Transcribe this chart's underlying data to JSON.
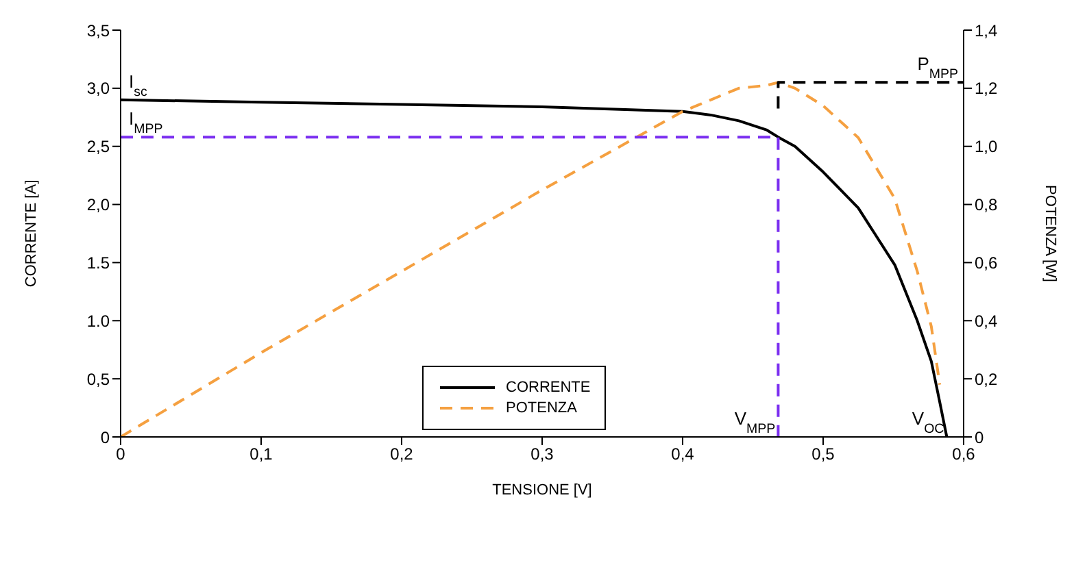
{
  "chart_data": {
    "type": "line",
    "xlabel": "TENSIONE [V]",
    "ylabel": "CORRENTE [A]",
    "y2label": "POTENZA [W]",
    "xlim": [
      0,
      0.6
    ],
    "xticks": [
      0,
      {
        "value": 0.1,
        "label": "0,1"
      },
      {
        "value": 0.2,
        "label": "0,2"
      },
      {
        "value": 0.3,
        "label": "0,3"
      },
      {
        "value": 0.4,
        "label": "0,4"
      },
      {
        "value": 0.5,
        "label": "0,5"
      },
      {
        "value": 0.6,
        "label": "0,6"
      }
    ],
    "ylim": [
      0,
      3.5
    ],
    "yticks": [
      0,
      {
        "value": 0.5,
        "label": "0,5"
      },
      {
        "value": 1,
        "label": "1.0"
      },
      {
        "value": 1.5,
        "label": "1.5"
      },
      {
        "value": 2,
        "label": "2,0"
      },
      {
        "value": 2.5,
        "label": "2,5"
      },
      {
        "value": 3,
        "label": "3,0"
      },
      {
        "value": 3.5,
        "label": "3,5"
      }
    ],
    "y2lim": [
      0,
      1.4
    ],
    "y2ticks": [
      0,
      {
        "value": 0.2,
        "label": "0,2"
      },
      {
        "value": 0.4,
        "label": "0,4"
      },
      {
        "value": 0.6,
        "label": "0,6"
      },
      {
        "value": 0.8,
        "label": "0,8"
      },
      {
        "value": 1,
        "label": "1,0"
      },
      {
        "value": 1.2,
        "label": "1,2"
      },
      {
        "value": 1.4,
        "label": "1,4"
      }
    ],
    "series": [
      {
        "name": "CORRENTE",
        "color": "#000000",
        "line_style": "solid",
        "x": [
          0,
          0.1,
          0.2,
          0.3,
          0.4,
          0.42,
          0.44,
          0.46,
          0.468,
          0.48,
          0.5,
          0.525,
          0.551,
          0.567,
          0.577,
          0.583,
          0.588
        ],
        "values": [
          2.9,
          2.88,
          2.86,
          2.84,
          2.8,
          2.77,
          2.72,
          2.64,
          2.58,
          2.5,
          2.28,
          1.97,
          1.48,
          1.0,
          0.65,
          0.3,
          0
        ]
      },
      {
        "name": "POTENZA",
        "color": "#f5a040",
        "line_style": "dashed",
        "axis": "y2",
        "x": [
          0,
          0.1,
          0.2,
          0.3,
          0.4,
          0.42,
          0.44,
          0.46,
          0.468,
          0.48,
          0.5,
          0.525,
          0.551,
          0.567,
          0.577,
          0.583
        ],
        "values": [
          0,
          0.29,
          0.57,
          0.85,
          1.12,
          1.16,
          1.2,
          1.21,
          1.22,
          1.2,
          1.14,
          1.03,
          0.82,
          0.57,
          0.38,
          0.18
        ]
      },
      {
        "color": "#7b2ff0",
        "line_style": "dashed",
        "x": [
          0,
          0.468,
          0.468
        ],
        "values": [
          2.58,
          2.58,
          0
        ]
      },
      {
        "color": "#000000",
        "line_style": "dashed",
        "axis": "y2",
        "x": [
          0.468,
          0.468,
          0.6
        ],
        "values": [
          1.13,
          1.22,
          1.22
        ]
      }
    ],
    "annotations": [
      {
        "text": "I$_{sc}$",
        "x": 0,
        "y": 2.9
      },
      {
        "text": "I$_{MPP}$",
        "x": 0,
        "y": 2.58
      },
      {
        "text": "P$_{MPP}$",
        "x": 0.6,
        "y": 3.05
      },
      {
        "text": "V$_{MPP}$",
        "x": 0.468,
        "y": 0
      },
      {
        "text": "V$_{OC}$",
        "x": 0.588,
        "y": 0
      }
    ],
    "legend": "bottom"
  }
}
